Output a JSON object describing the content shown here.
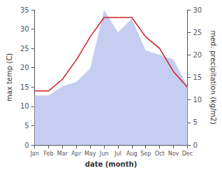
{
  "chart_data": {
    "type": "line",
    "xlabel": "date (month)",
    "ylabel": "max temp (C)",
    "y2label": "med. precipitation (kg/m2)",
    "categories": [
      "Jan",
      "Feb",
      "Mar",
      "Apr",
      "May",
      "Jun",
      "Jul",
      "Aug",
      "Sep",
      "Oct",
      "Nov",
      "Dec"
    ],
    "series": [
      {
        "type": "area",
        "axis": "y2",
        "color": "#c5cef0",
        "values": [
          11.0,
          11.0,
          13.0,
          14.0,
          17.0,
          30.0,
          25.0,
          28.0,
          21.0,
          20.0,
          19.0,
          13.0
        ]
      },
      {
        "type": "line",
        "color": "#cc2222",
        "values": [
          14.0,
          14.0,
          17.0,
          22.0,
          28.0,
          33.0,
          33.0,
          33.0,
          28.0,
          25.0,
          19.0,
          15.0
        ]
      }
    ],
    "ylim": [
      0,
      35
    ],
    "yticks": [
      0,
      5,
      10,
      15,
      20,
      25,
      30,
      35
    ],
    "y2lim": [
      0,
      30
    ],
    "y2ticks": [
      0,
      5,
      10,
      15,
      20,
      25,
      30
    ],
    "grid": false
  }
}
